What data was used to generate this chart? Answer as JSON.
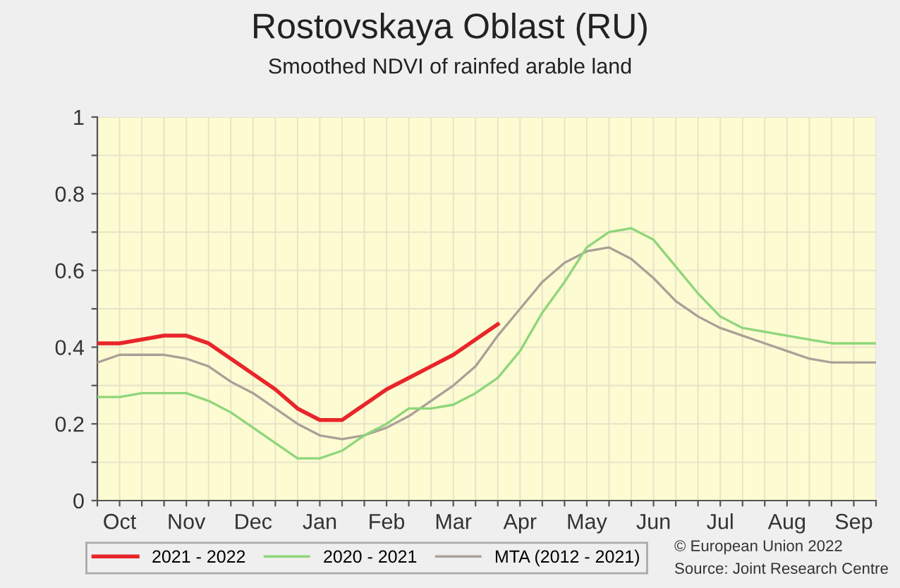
{
  "chart_data": {
    "type": "line",
    "title": "Rostovskaya Oblast (RU)",
    "subtitle": "Smoothed NDVI of rainfed arable land",
    "categories": [
      null,
      "Oct",
      null,
      null,
      "Nov",
      null,
      null,
      "Dec",
      null,
      null,
      "Jan",
      null,
      null,
      "Feb",
      null,
      null,
      "Mar",
      null,
      null,
      "Apr",
      null,
      null,
      "May",
      null,
      null,
      "Jun",
      null,
      null,
      "Jul",
      null,
      null,
      "Aug",
      null,
      null,
      "Sep",
      null
    ],
    "series": [
      {
        "name": "2021 - 2022",
        "color": "#e8262a",
        "values": [
          0.41,
          0.41,
          0.42,
          0.43,
          0.43,
          0.41,
          0.37,
          0.33,
          0.29,
          0.24,
          0.21,
          0.21,
          0.25,
          0.29,
          0.32,
          0.35,
          0.38,
          0.42,
          0.46,
          null,
          null,
          null,
          null,
          null,
          null,
          null,
          null,
          null,
          null,
          null,
          null,
          null,
          null,
          null,
          null,
          null
        ]
      },
      {
        "name": "2020 - 2021",
        "color": "#8fd67a",
        "values": [
          0.27,
          0.27,
          0.28,
          0.28,
          0.28,
          0.26,
          0.23,
          0.19,
          0.15,
          0.11,
          0.11,
          0.13,
          0.17,
          0.2,
          0.24,
          0.24,
          0.25,
          0.28,
          0.32,
          0.39,
          0.49,
          0.57,
          0.66,
          0.7,
          0.71,
          0.68,
          0.61,
          0.54,
          0.48,
          0.45,
          0.44,
          0.43,
          0.42,
          0.41,
          0.41,
          0.41
        ]
      },
      {
        "name": "MTA (2012 - 2021)",
        "color": "#aaa098",
        "values": [
          0.36,
          0.38,
          0.38,
          0.38,
          0.37,
          0.35,
          0.31,
          0.28,
          0.24,
          0.2,
          0.17,
          0.16,
          0.17,
          0.19,
          0.22,
          0.26,
          0.3,
          0.35,
          0.43,
          0.5,
          0.57,
          0.62,
          0.65,
          0.66,
          0.63,
          0.58,
          0.52,
          0.48,
          0.45,
          0.43,
          0.41,
          0.39,
          0.37,
          0.36,
          0.36,
          0.36
        ]
      }
    ],
    "ylim": [
      0,
      1
    ],
    "yticks": [
      0,
      {
        "value": 0.1,
        "label": null
      },
      0.2,
      {
        "value": 0.3,
        "label": null
      },
      0.4,
      {
        "value": 0.5,
        "label": null
      },
      0.6,
      {
        "value": 0.7,
        "label": null
      },
      0.8,
      {
        "value": 0.9,
        "label": null
      },
      1
    ],
    "grid": true,
    "legend": "bottom",
    "marker": "none",
    "line_style": "solid",
    "annotations": [
      "© European Union 2022",
      "Source: Joint Research Centre"
    ]
  }
}
